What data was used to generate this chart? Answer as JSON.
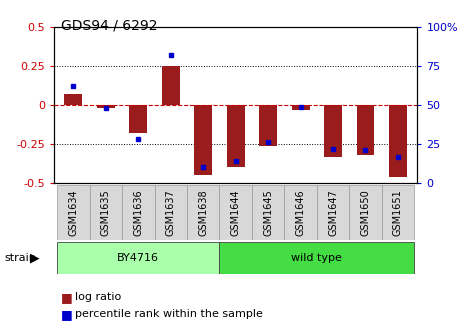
{
  "title": "GDS94 / 6292",
  "samples": [
    "GSM1634",
    "GSM1635",
    "GSM1636",
    "GSM1637",
    "GSM1638",
    "GSM1644",
    "GSM1645",
    "GSM1646",
    "GSM1647",
    "GSM1650",
    "GSM1651"
  ],
  "log_ratios": [
    0.07,
    -0.02,
    -0.18,
    0.25,
    -0.45,
    -0.4,
    -0.26,
    -0.03,
    -0.33,
    -0.32,
    -0.46
  ],
  "percentiles": [
    62,
    48,
    28,
    82,
    10,
    14,
    26,
    49,
    22,
    21,
    17
  ],
  "strain_groups": [
    {
      "label": "BY4716",
      "start": 0,
      "end": 5,
      "color": "#AAFFAA"
    },
    {
      "label": "wild type",
      "start": 5,
      "end": 11,
      "color": "#44DD44"
    }
  ],
  "bar_color": "#9B1C1C",
  "dot_color": "#0000CC",
  "ylim": [
    -0.5,
    0.5
  ],
  "y2lim": [
    0,
    100
  ],
  "yticks_left": [
    -0.5,
    -0.25,
    0,
    0.25,
    0.5
  ],
  "yticks_right": [
    0,
    25,
    50,
    75,
    100
  ],
  "hline_color": "#CC0000",
  "dot_line_color": "black",
  "bg_color": "#FFFFFF",
  "tick_color_left": "#CC0000",
  "tick_color_right": "#0000CC",
  "strain_label": "strain",
  "legend_log": "log ratio",
  "legend_pct": "percentile rank within the sample",
  "bar_width": 0.55,
  "xlabel_bg": "#D8D8D8"
}
